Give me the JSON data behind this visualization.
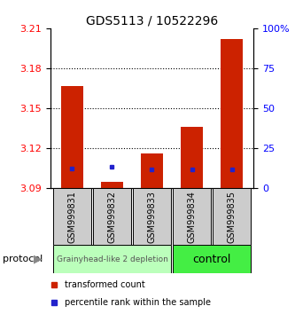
{
  "title": "GDS5113 / 10522296",
  "samples": [
    "GSM999831",
    "GSM999832",
    "GSM999833",
    "GSM999834",
    "GSM999835"
  ],
  "red_bar_top": [
    3.167,
    3.095,
    3.116,
    3.136,
    3.202
  ],
  "red_bar_bottom": [
    3.09,
    3.09,
    3.09,
    3.09,
    3.09
  ],
  "blue_mark_values": [
    3.105,
    3.106,
    3.104,
    3.104,
    3.104
  ],
  "ylim_left": [
    3.09,
    3.21
  ],
  "ylim_right": [
    0,
    100
  ],
  "yticks_left": [
    3.09,
    3.12,
    3.15,
    3.18,
    3.21
  ],
  "yticks_right": [
    0,
    25,
    50,
    75,
    100
  ],
  "ytick_right_labels": [
    "0",
    "25",
    "50",
    "75",
    "100%"
  ],
  "grid_lines": [
    3.12,
    3.15,
    3.18
  ],
  "group0_label": "Grainyhead-like 2 depletion",
  "group0_color": "#bbffbb",
  "group0_samples": [
    0,
    1,
    2
  ],
  "group1_label": "control",
  "group1_color": "#44ee44",
  "group1_samples": [
    3,
    4
  ],
  "protocol_label": "protocol",
  "legend_red": "transformed count",
  "legend_blue": "percentile rank within the sample",
  "bar_color": "#cc2200",
  "blue_color": "#2222cc",
  "bar_width": 0.55,
  "title_fontsize": 10,
  "axis_fontsize": 8,
  "sample_fontsize": 7,
  "group0_fontsize": 6.5,
  "group1_fontsize": 9,
  "legend_fontsize": 7
}
